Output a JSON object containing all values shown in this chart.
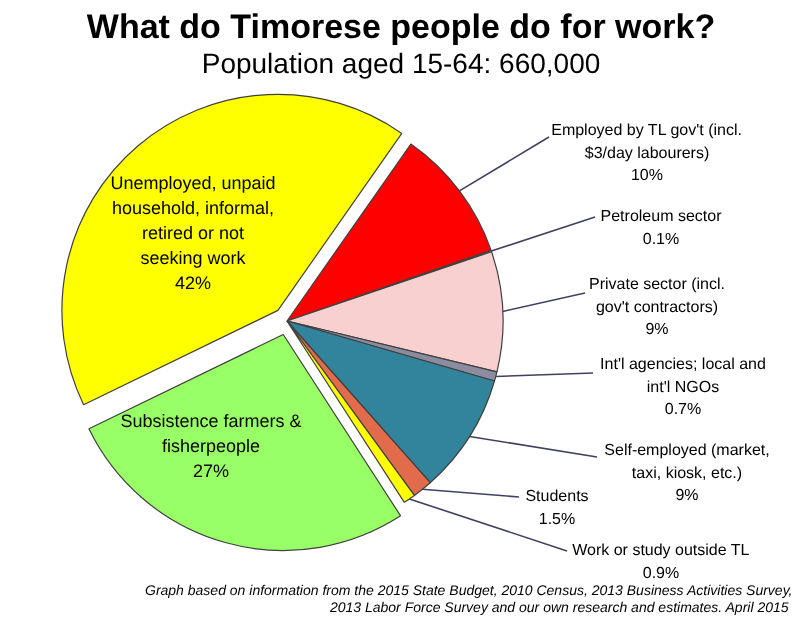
{
  "chart_data": {
    "type": "pie",
    "title": "What do Timorese people do for work?",
    "subtitle": "Population aged 15-64: 660,000",
    "categories": [
      "Employed by TL gov't (incl. $3/day labourers)",
      "Petroleum sector",
      "Private sector (incl. gov't contractors)",
      "Int'l agencies; local and int'l NGOs",
      "Self-employed (market, taxi, kiosk, etc.)",
      "Students",
      "Work or study outside TL",
      "Subsistence farmers & fisherpeople",
      "Unemployed, unpaid household, informal, retired or not seeking work"
    ],
    "values": [
      10,
      0.1,
      9,
      0.7,
      9,
      1.5,
      0.9,
      27,
      42
    ],
    "value_labels": [
      "10%",
      "0.1%",
      "9%",
      "0.7%",
      "9%",
      "1.5%",
      "0.9%",
      "27%",
      "42%"
    ],
    "colors": [
      "#ff0000",
      "#a6a6a6",
      "#f8d0d0",
      "#8c8ca0",
      "#31849b",
      "#e26b4b",
      "#ffff00",
      "#99ff66",
      "#ffff00"
    ],
    "annotations": [
      "Graph based on information from the 2015 State Budget, 2010 Census, 2013 Business Activities Survey, 2013 Labor Force Survey and our own research and estimates.  April 2015"
    ]
  }
}
